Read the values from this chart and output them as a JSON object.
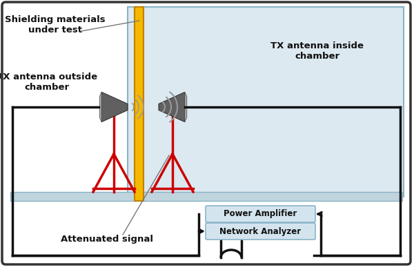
{
  "fig_width": 6.0,
  "fig_height": 3.94,
  "dpi": 100,
  "bg_color": "#ffffff",
  "chamber_bg": "#dde9f0",
  "chamber_border": "#8ab4c8",
  "floor_color": "#c0d4de",
  "shield_color": "#f5b800",
  "shield_border": "#c08000",
  "antenna_body_color": "#606060",
  "antenna_face_color": "#aaaaaa",
  "antenna_stand_color": "#cc0000",
  "box_bg": "#d4e4ee",
  "box_border": "#8ab4c8",
  "cable_color": "#111111",
  "wave_color": "#999999",
  "text_color": "#111111",
  "annot_color": "#777777",
  "label_shielding": "Shielding materials\nunder test",
  "label_rx": "RX antenna outside\nchamber",
  "label_tx": "TX antenna inside\nchamber",
  "label_attenuated": "Attenuated signal",
  "label_power_amp": "Power Amplifier",
  "label_network": "Network Analyzer",
  "outer_border": "#333333"
}
